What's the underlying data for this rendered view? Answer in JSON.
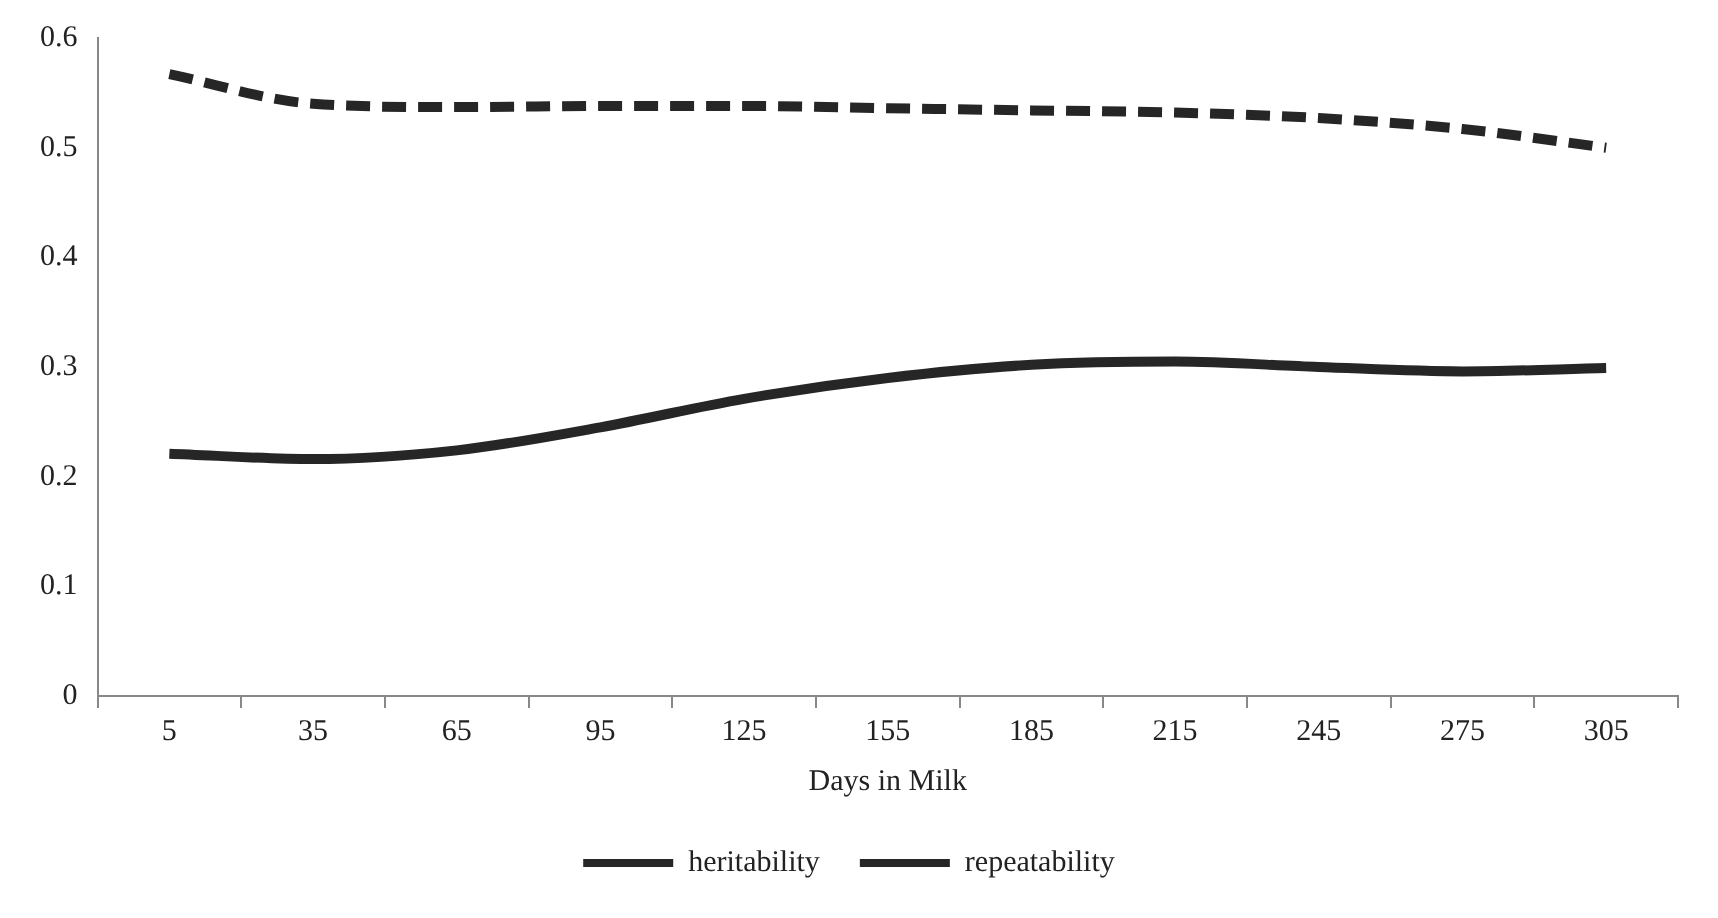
{
  "chart_data": {
    "type": "line",
    "xlabel": "Days in Milk",
    "categories": [
      "5",
      "35",
      "65",
      "95",
      "125",
      "155",
      "185",
      "215",
      "245",
      "275",
      "305"
    ],
    "series": [
      {
        "name": "heritability",
        "color": "#262626",
        "line_style": "solid",
        "values": [
          0.221,
          0.216,
          0.224,
          0.245,
          0.271,
          0.29,
          0.302,
          0.305,
          0.3,
          0.296,
          0.299
        ]
      },
      {
        "name": "repeatability",
        "color": "#262626",
        "line_style": "dashed",
        "values": [
          0.567,
          0.54,
          0.537,
          0.538,
          0.538,
          0.536,
          0.534,
          0.532,
          0.527,
          0.517,
          0.5
        ]
      }
    ],
    "ylim": [
      0,
      0.6
    ],
    "yticks": [
      0,
      0.1,
      0.2,
      0.3,
      0.4,
      0.5,
      0.6
    ],
    "grid": false,
    "legend": "bottom",
    "marker": "none"
  }
}
